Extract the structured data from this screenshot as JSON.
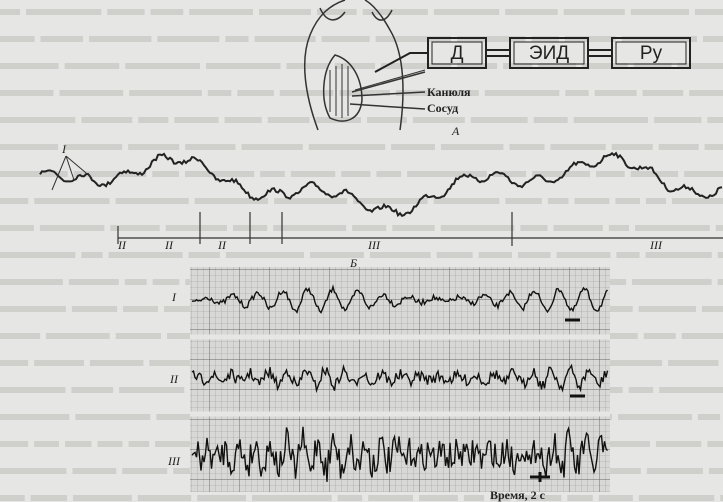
{
  "diagram": {
    "blocks": [
      "Д",
      "ЭИД",
      "Ру"
    ],
    "labels": {
      "cannula": "Канюля",
      "vessel": "Сосуд",
      "panel_a": "А",
      "panel_b": "Б"
    },
    "top_trace": {
      "marker": "I",
      "segments": [
        "II",
        "II",
        "II",
        "III",
        "III"
      ]
    },
    "recordings": [
      "I",
      "II",
      "III"
    ],
    "time_scale": "Время, 2 с"
  }
}
